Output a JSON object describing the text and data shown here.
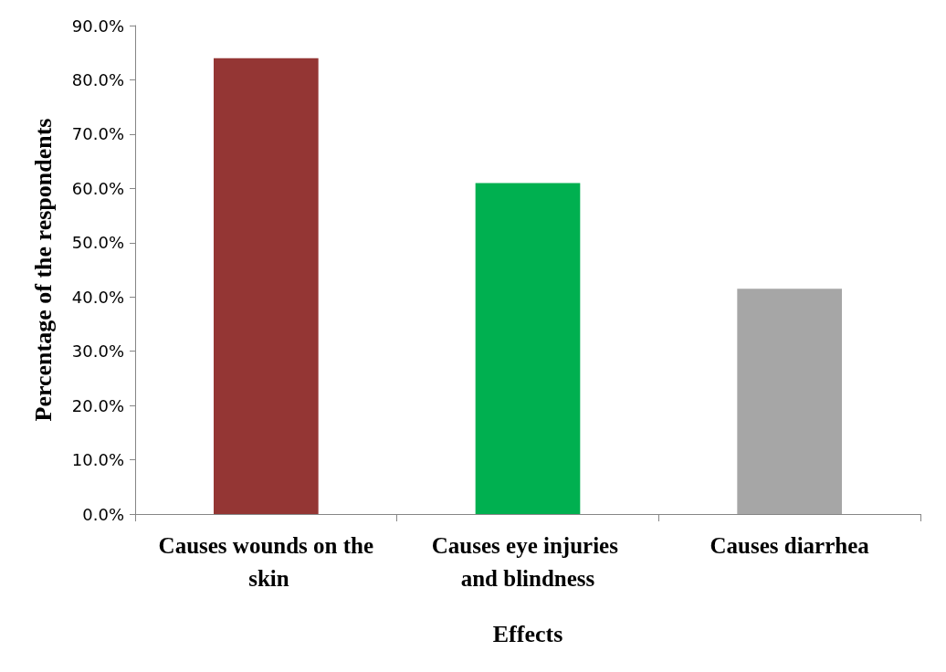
{
  "chart_data": {
    "type": "bar",
    "xlabel": "Effects",
    "ylabel": "Percentage of the respondents",
    "categories": [
      "Causes wounds on the skin",
      "Causes eye injuries and blindness",
      "Causes diarrhea"
    ],
    "values": [
      84.0,
      61.0,
      41.5
    ],
    "colors": [
      "#943634",
      "#00b050",
      "#a6a6a6"
    ],
    "ylim": [
      0,
      90
    ],
    "yticks": [
      {
        "value": 0,
        "label": "0.0%"
      },
      {
        "value": 10,
        "label": "10.0%"
      },
      {
        "value": 20,
        "label": "20.0%"
      },
      {
        "value": 30,
        "label": "30.0%"
      },
      {
        "value": 40,
        "label": "40.0%"
      },
      {
        "value": 50,
        "label": "50.0%"
      },
      {
        "value": 60,
        "label": "60.0%"
      },
      {
        "value": 70,
        "label": "70.0%"
      },
      {
        "value": 80,
        "label": "80.0%"
      },
      {
        "value": 90,
        "label": "90.0%"
      }
    ],
    "grid": false
  }
}
